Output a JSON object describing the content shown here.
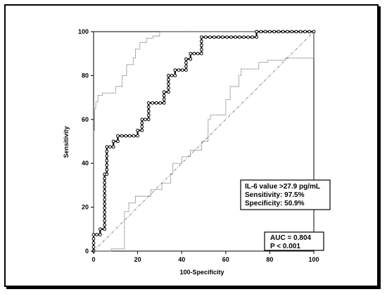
{
  "chart_data": {
    "type": "line",
    "xlabel": "100-Specificity",
    "ylabel": "Sensitivity",
    "xlim": [
      0,
      100
    ],
    "ylim": [
      0,
      100
    ],
    "x_ticks": [
      "0",
      "20",
      "40",
      "60",
      "80",
      "100"
    ],
    "y_ticks": [
      "0",
      "20",
      "40",
      "60",
      "80",
      "100"
    ],
    "series": [
      {
        "name": "",
        "style": "bold-markers",
        "color": "#000000",
        "points": [
          [
            0,
            0
          ],
          [
            0,
            7.5
          ],
          [
            3,
            7.5
          ],
          [
            3,
            10
          ],
          [
            5,
            10
          ],
          [
            5,
            35
          ],
          [
            6,
            35
          ],
          [
            6,
            47.5
          ],
          [
            9,
            47.5
          ],
          [
            9,
            50
          ],
          [
            11,
            50
          ],
          [
            11,
            52.5
          ],
          [
            20,
            52.5
          ],
          [
            20,
            55
          ],
          [
            22,
            55
          ],
          [
            22,
            60
          ],
          [
            25,
            60
          ],
          [
            25,
            67.5
          ],
          [
            32,
            67.5
          ],
          [
            32,
            72.5
          ],
          [
            34,
            72.5
          ],
          [
            34,
            80
          ],
          [
            37,
            80
          ],
          [
            37,
            82.5
          ],
          [
            42,
            82.5
          ],
          [
            42,
            87.5
          ],
          [
            44,
            87.5
          ],
          [
            44,
            90
          ],
          [
            49,
            90
          ],
          [
            49,
            97.5
          ],
          [
            74,
            97.5
          ],
          [
            74,
            100
          ],
          [
            100,
            100
          ]
        ]
      },
      {
        "name": "",
        "style": "thin-dotted",
        "color": "#555555",
        "points": [
          [
            0,
            0
          ],
          [
            0,
            55
          ],
          [
            0.5,
            55
          ],
          [
            0.5,
            65
          ],
          [
            1,
            65
          ],
          [
            1,
            68
          ],
          [
            2,
            68
          ],
          [
            2,
            71
          ],
          [
            4,
            71
          ],
          [
            4,
            72
          ],
          [
            10,
            72
          ],
          [
            10,
            75
          ],
          [
            13,
            75
          ],
          [
            13,
            80
          ],
          [
            15,
            80
          ],
          [
            15,
            85
          ],
          [
            18,
            85
          ],
          [
            18,
            88
          ],
          [
            19,
            88
          ],
          [
            19,
            92
          ],
          [
            21,
            92
          ],
          [
            21,
            95
          ],
          [
            24,
            95
          ],
          [
            24,
            97
          ],
          [
            27,
            97
          ],
          [
            27,
            98
          ],
          [
            30,
            98
          ],
          [
            30,
            100
          ],
          [
            100,
            100
          ]
        ]
      },
      {
        "name": "",
        "style": "thin-dotted",
        "color": "#555555",
        "points": [
          [
            0,
            0
          ],
          [
            8,
            0
          ],
          [
            8,
            1
          ],
          [
            14,
            1
          ],
          [
            14,
            18
          ],
          [
            16,
            18
          ],
          [
            16,
            22
          ],
          [
            19,
            22
          ],
          [
            19,
            25
          ],
          [
            26,
            25
          ],
          [
            26,
            28
          ],
          [
            31,
            28
          ],
          [
            31,
            31
          ],
          [
            35,
            31
          ],
          [
            35,
            35
          ],
          [
            36,
            35
          ],
          [
            36,
            40
          ],
          [
            40,
            40
          ],
          [
            40,
            43
          ],
          [
            44,
            43
          ],
          [
            44,
            46
          ],
          [
            49,
            46
          ],
          [
            49,
            50
          ],
          [
            52,
            50
          ],
          [
            52,
            60
          ],
          [
            53,
            60
          ],
          [
            53,
            62
          ],
          [
            60,
            62
          ],
          [
            60,
            69
          ],
          [
            62,
            69
          ],
          [
            62,
            75
          ],
          [
            66,
            75
          ],
          [
            66,
            80
          ],
          [
            67,
            80
          ],
          [
            67,
            83
          ],
          [
            75,
            83
          ],
          [
            75,
            86
          ],
          [
            79,
            86
          ],
          [
            79,
            87
          ],
          [
            87,
            87
          ],
          [
            87,
            88
          ],
          [
            100,
            88
          ],
          [
            100,
            100
          ]
        ]
      },
      {
        "name": "",
        "style": "reference",
        "color": "#666666",
        "points": [
          [
            0,
            0
          ],
          [
            100,
            100
          ]
        ]
      }
    ],
    "annotations": {
      "cutoff_title": "IL-6 value >27.9 pg/mL",
      "sensitivity": "Sensitivity: 97.5%",
      "specificity": "Specificity: 50.9%",
      "auc": "AUC = 0.804",
      "p_value": "P < 0.001"
    }
  }
}
